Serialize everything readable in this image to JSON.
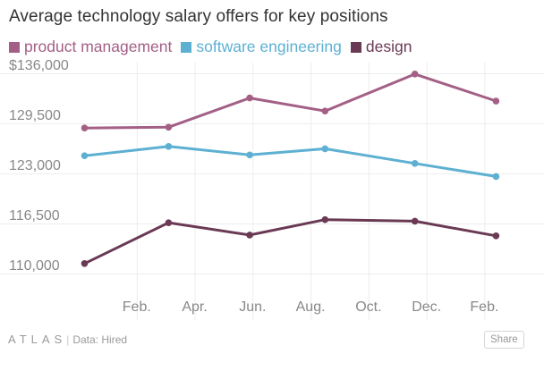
{
  "header": {
    "title": "Average technology salary offers for key positions"
  },
  "chart_data": {
    "type": "line",
    "title": "Average technology salary offers for key positions",
    "xlabel": "",
    "ylabel": "",
    "ylim": [
      110000,
      136000
    ],
    "yticks": [
      {
        "value": 136000,
        "label": "$136,000"
      },
      {
        "value": 129500,
        "label": "129,500"
      },
      {
        "value": 123000,
        "label": "123,000"
      },
      {
        "value": 116500,
        "label": "116,500"
      },
      {
        "value": 110000,
        "label": "110,000"
      }
    ],
    "x_range": [
      0,
      15.5
    ],
    "xticks": [
      {
        "value": 2,
        "label": "Feb."
      },
      {
        "value": 4,
        "label": "Apr."
      },
      {
        "value": 6,
        "label": "Jun."
      },
      {
        "value": 8,
        "label": "Aug."
      },
      {
        "value": 10,
        "label": "Oct."
      },
      {
        "value": 12,
        "label": "Dec."
      },
      {
        "value": 14,
        "label": "Feb."
      }
    ],
    "grid": true,
    "legend_position": "top-left",
    "series": [
      {
        "name": "product management",
        "color": "#a35f86",
        "x": [
          0.2,
          3.1,
          5.9,
          8.5,
          11.6,
          14.4
        ],
        "values": [
          128900,
          129000,
          132800,
          131100,
          135900,
          132400
        ]
      },
      {
        "name": "software engineering",
        "color": "#5db0d2",
        "x": [
          0.2,
          3.1,
          5.9,
          8.5,
          11.6,
          14.4
        ],
        "values": [
          125300,
          126500,
          125400,
          126200,
          124300,
          122600
        ]
      },
      {
        "name": "design",
        "color": "#6a3a54",
        "x": [
          0.2,
          3.1,
          5.9,
          8.5,
          11.6,
          14.4
        ],
        "values": [
          111300,
          116600,
          115000,
          117000,
          116800,
          114900
        ]
      }
    ]
  },
  "footer": {
    "logo": "ATLAS",
    "separator": "|",
    "source": "Data: Hired",
    "share_label": "Share"
  }
}
